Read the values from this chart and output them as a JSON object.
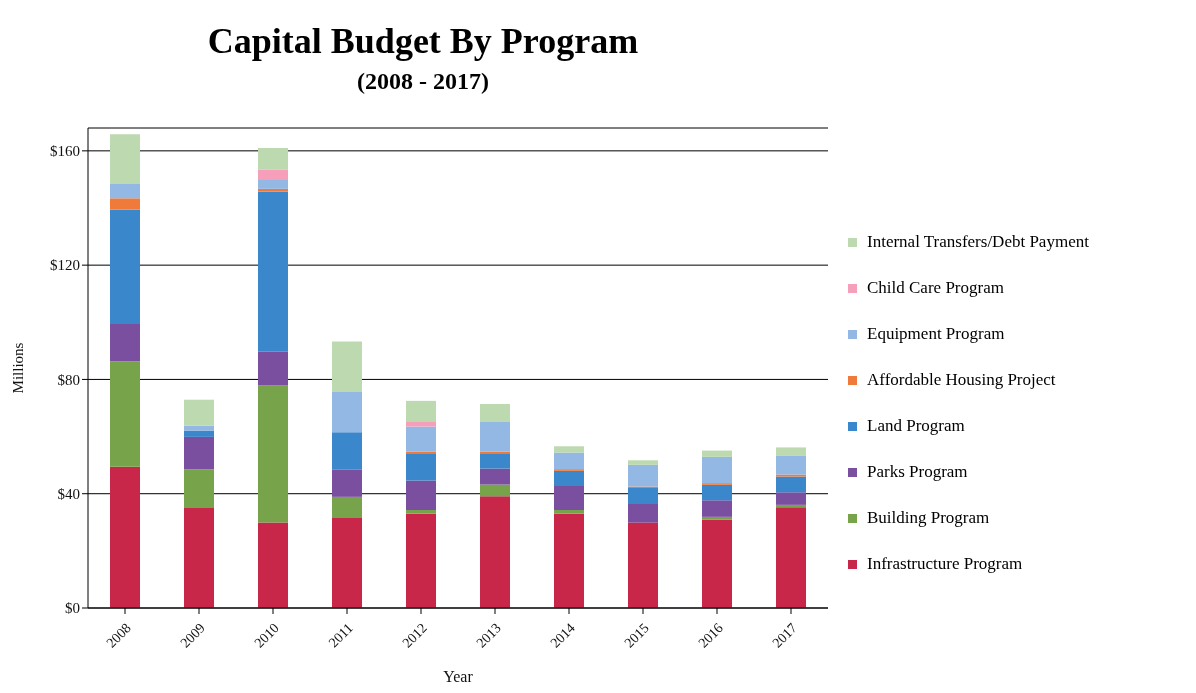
{
  "chart_data": {
    "type": "bar",
    "title": "Capital Budget By Program",
    "subtitle": "(2008 - 2017)",
    "xlabel": "Year",
    "ylabel": "Millions",
    "categories": [
      "2008",
      "2009",
      "2010",
      "2011",
      "2012",
      "2013",
      "2014",
      "2015",
      "2016",
      "2017"
    ],
    "stacked": true,
    "grid": "y",
    "legend": "right",
    "ylim": [
      0,
      168
    ],
    "yticks": [
      {
        "value": 0,
        "label": "$0"
      },
      {
        "value": 40,
        "label": "$40"
      },
      {
        "value": 80,
        "label": "$80"
      },
      {
        "value": 120,
        "label": "$120"
      },
      {
        "value": 160,
        "label": "$160"
      }
    ],
    "series": [
      {
        "name": "Infrastructure Program",
        "color": "#c8274a",
        "values": [
          49.4,
          35,
          29.9,
          31.5,
          33,
          39.1,
          33,
          29.9,
          31,
          35.3
        ]
      },
      {
        "name": "Building Program",
        "color": "#77a44a",
        "values": [
          37,
          13.6,
          48,
          7.4,
          1.3,
          4.1,
          1.3,
          0,
          0.9,
          0.8
        ]
      },
      {
        "name": "Parks Program",
        "color": "#7a4fa0",
        "values": [
          13,
          11.3,
          11.8,
          9.6,
          10.3,
          5.6,
          8.4,
          6.5,
          5.8,
          4.4
        ]
      },
      {
        "name": "Land Program",
        "color": "#3b87cc",
        "values": [
          40,
          2.2,
          56,
          13,
          9.3,
          5.1,
          5.3,
          5.6,
          5.4,
          5.5
        ]
      },
      {
        "name": "Affordable Housing Project",
        "color": "#f07a3a",
        "values": [
          4,
          0,
          1,
          0,
          0.8,
          0.8,
          0.6,
          0.5,
          0.6,
          0.7
        ]
      },
      {
        "name": "Equipment Program",
        "color": "#94b8e4",
        "values": [
          5,
          1.7,
          3.4,
          14.1,
          8.8,
          10.4,
          5.8,
          7.6,
          9.2,
          6.7
        ]
      },
      {
        "name": "Child Care Program",
        "color": "#f59fba",
        "values": [
          0,
          0,
          3.4,
          0,
          1.6,
          0,
          0,
          0,
          0,
          0
        ]
      },
      {
        "name": "Internal Transfers/Debt Payment",
        "color": "#bcd9b0",
        "values": [
          17.4,
          9.1,
          7.5,
          17.7,
          7.4,
          6.3,
          2.2,
          1.6,
          2.2,
          2.8
        ]
      }
    ]
  }
}
